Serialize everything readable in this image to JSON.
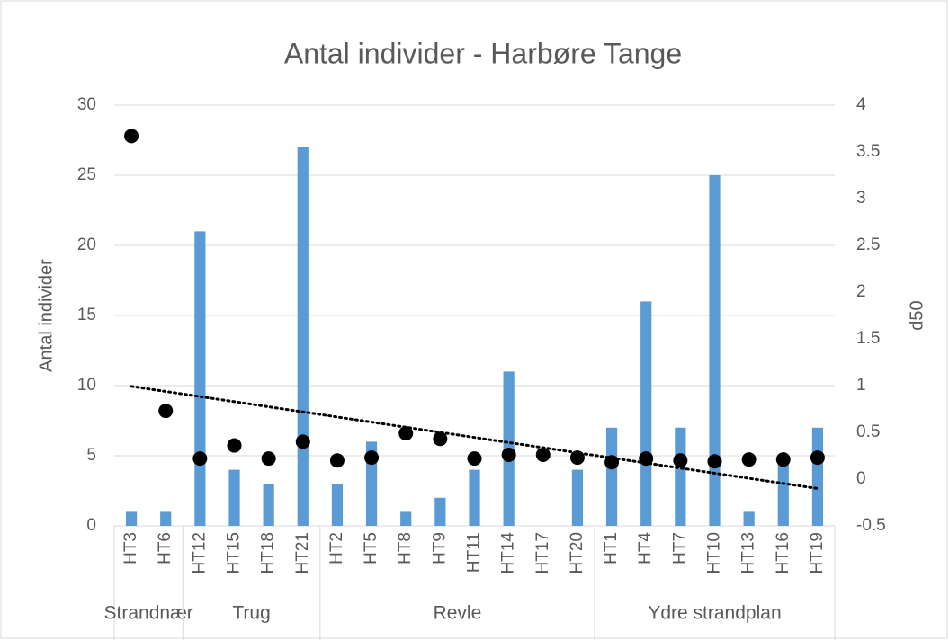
{
  "chart_data": {
    "type": "bar_scatter",
    "title": "Antal individer - Harbøre Tange",
    "ylabel": "Antal individer",
    "y2label": "d50",
    "categories": [
      "HT3",
      "HT6",
      "HT12",
      "HT15",
      "HT18",
      "HT21",
      "HT2",
      "HT5",
      "HT8",
      "HT9",
      "HT11",
      "HT14",
      "HT17",
      "HT20",
      "HT1",
      "HT4",
      "HT7",
      "HT10",
      "HT13",
      "HT16",
      "HT19"
    ],
    "groups": [
      {
        "label": "Strandnær",
        "size": 2
      },
      {
        "label": "Trug",
        "size": 4
      },
      {
        "label": "Revle",
        "size": 8
      },
      {
        "label": "Ydre strandplan",
        "size": 7
      }
    ],
    "series": [
      {
        "type": "bar",
        "color": "#5b9bd5",
        "axis": "y",
        "values": [
          1,
          1,
          21,
          4,
          3,
          27,
          3,
          6,
          1,
          2,
          4,
          11,
          0,
          4,
          7,
          16,
          7,
          25,
          1,
          5,
          7
        ]
      },
      {
        "type": "scatter",
        "color": "#000000",
        "axis": "y2",
        "trendline": "linear",
        "values": [
          3.67,
          0.73,
          0.22,
          0.36,
          0.22,
          0.4,
          0.2,
          0.23,
          0.49,
          0.43,
          0.22,
          0.26,
          0.26,
          0.23,
          0.18,
          0.22,
          0.2,
          0.19,
          0.21,
          0.21,
          0.23
        ]
      }
    ],
    "ylim": [
      0,
      30
    ],
    "yticks": [
      0,
      5,
      10,
      15,
      20,
      25,
      30
    ],
    "y2lim": [
      -0.5,
      4
    ],
    "y2ticks": [
      -0.5,
      0,
      0.5,
      1,
      1.5,
      2,
      2.5,
      3,
      3.5,
      4
    ],
    "grid": true
  }
}
